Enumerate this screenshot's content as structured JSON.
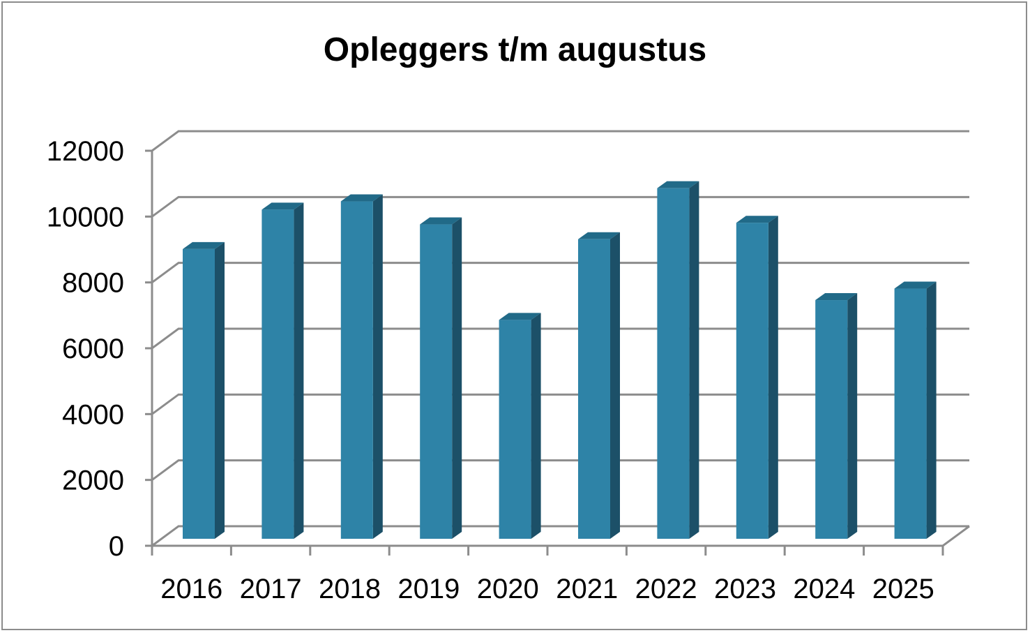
{
  "chart_data": {
    "type": "bar",
    "title": "Opleggers t/m augustus",
    "categories": [
      "2016",
      "2017",
      "2018",
      "2019",
      "2020",
      "2021",
      "2022",
      "2023",
      "2024",
      "2025"
    ],
    "values": [
      8800,
      10000,
      10250,
      9550,
      6650,
      9100,
      10650,
      9600,
      7250,
      7600
    ],
    "xlabel": "",
    "ylabel": "",
    "ylim": [
      0,
      12000
    ],
    "yticks": [
      "0",
      "2000",
      "4000",
      "6000",
      "8000",
      "10000",
      "12000"
    ],
    "grid": true,
    "legend": "none",
    "style": "3d-clustered-column",
    "colors": {
      "bar_front": "#2e83a7",
      "bar_side": "#1c5068",
      "bar_top": "#216a88",
      "grid": "#8c8c8c"
    }
  }
}
